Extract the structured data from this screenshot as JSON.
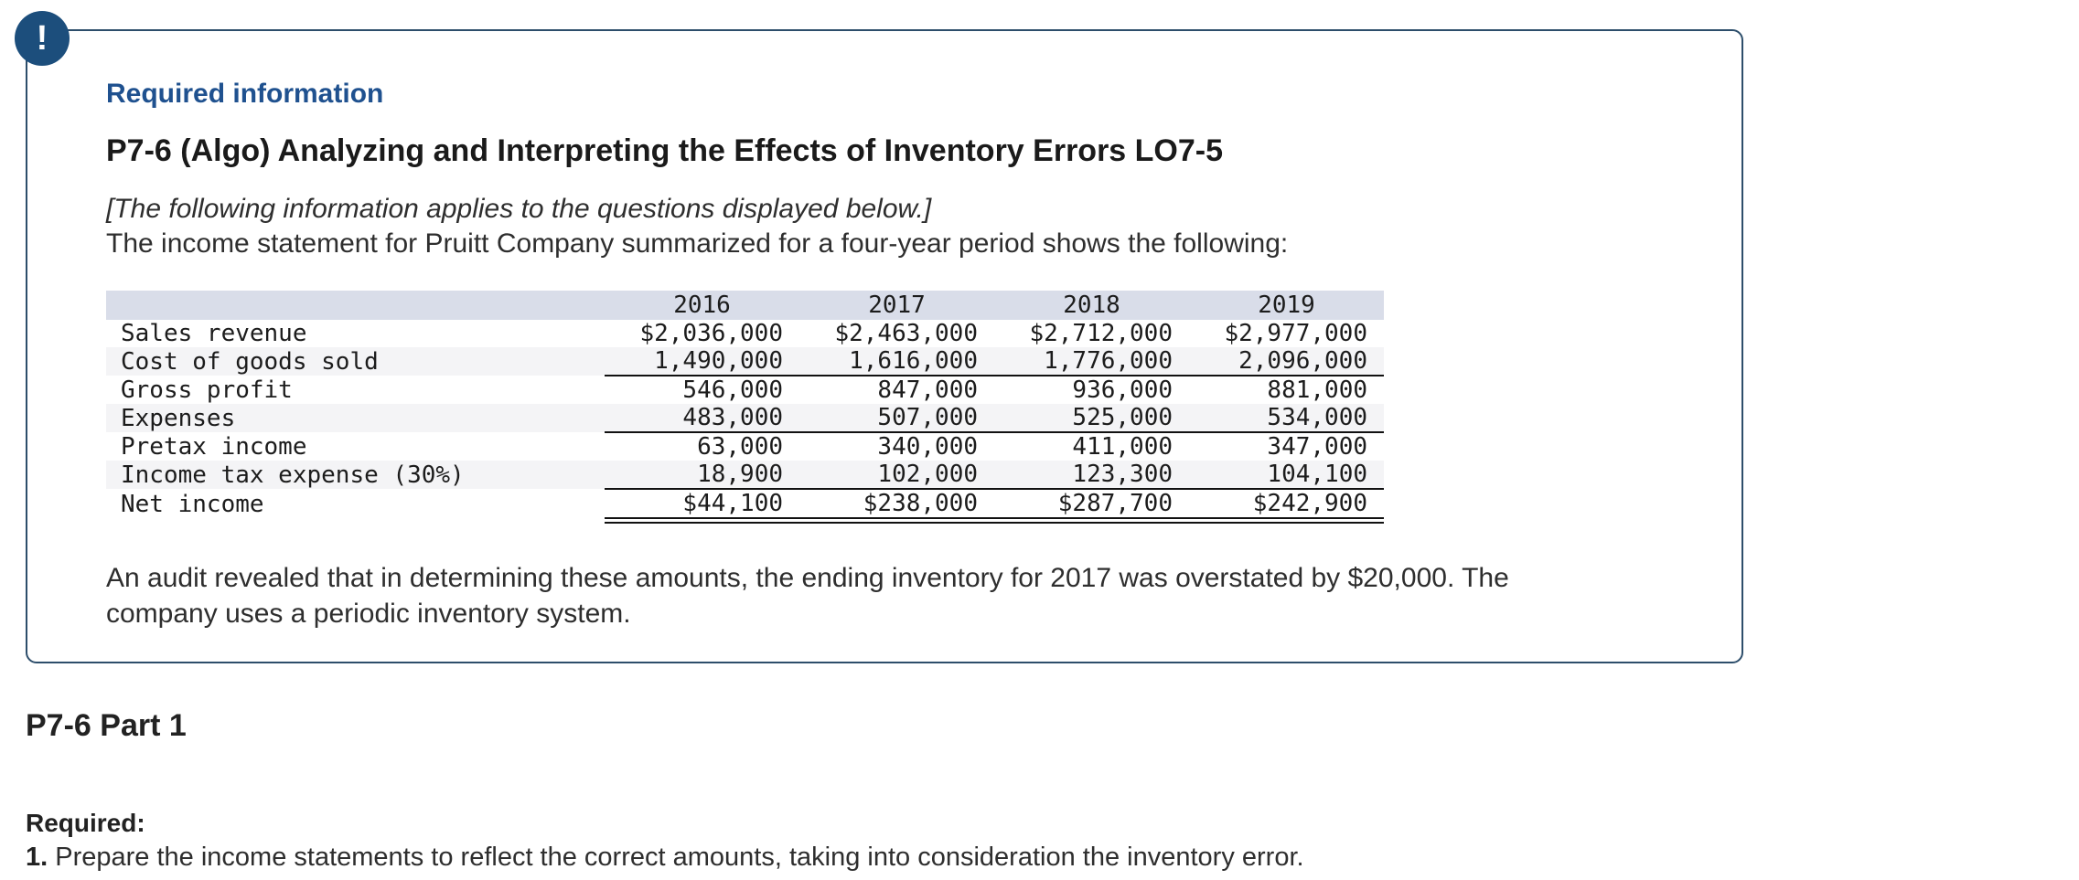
{
  "icons": {
    "alert": "exclamation-icon",
    "alert_glyph": "!"
  },
  "colors": {
    "accent_blue": "#1f518f",
    "panel_border": "#2d4e6b",
    "alert_circle": "#1c4e7c",
    "table_header_band": "#d9dde9",
    "table_stripe": "#f4f4f6",
    "rule_line": "#111111"
  },
  "info_box": {
    "required_info": "Required information",
    "title": "P7-6 (Algo) Analyzing and Interpreting the Effects of Inventory Errors LO7-5",
    "applies_note": "[The following information applies to the questions displayed below.]",
    "intro": "The income statement for Pruitt Company summarized for a four-year period shows the following:",
    "audit_note": "An audit revealed that in determining these amounts, the ending inventory for 2017 was overstated by $20,000. The company uses a periodic inventory system."
  },
  "income_table": {
    "columns": [
      "2016",
      "2017",
      "2018",
      "2019"
    ],
    "rows": [
      {
        "label": "Sales revenue",
        "values": [
          "$2,036,000",
          "$2,463,000",
          "$2,712,000",
          "$2,977,000"
        ],
        "rule": "none"
      },
      {
        "label": "Cost of goods sold",
        "values": [
          "1,490,000",
          "1,616,000",
          "1,776,000",
          "2,096,000"
        ],
        "rule": "single"
      },
      {
        "label": "Gross profit",
        "values": [
          "546,000",
          "847,000",
          "936,000",
          "881,000"
        ],
        "rule": "none"
      },
      {
        "label": "Expenses",
        "values": [
          "483,000",
          "507,000",
          "525,000",
          "534,000"
        ],
        "rule": "single"
      },
      {
        "label": "Pretax income",
        "values": [
          "63,000",
          "340,000",
          "411,000",
          "347,000"
        ],
        "rule": "none"
      },
      {
        "label": "Income tax expense (30%)",
        "values": [
          "18,900",
          "102,000",
          "123,300",
          "104,100"
        ],
        "rule": "single"
      },
      {
        "label": "Net income",
        "values": [
          "$44,100",
          "$238,000",
          "$287,700",
          "$242,900"
        ],
        "rule": "double"
      }
    ]
  },
  "part_section": {
    "heading": "P7-6 Part 1",
    "required_label": "Required:",
    "item_number": "1.",
    "item_text": "Prepare the income statements to reflect the correct amounts, taking into consideration the inventory error."
  }
}
